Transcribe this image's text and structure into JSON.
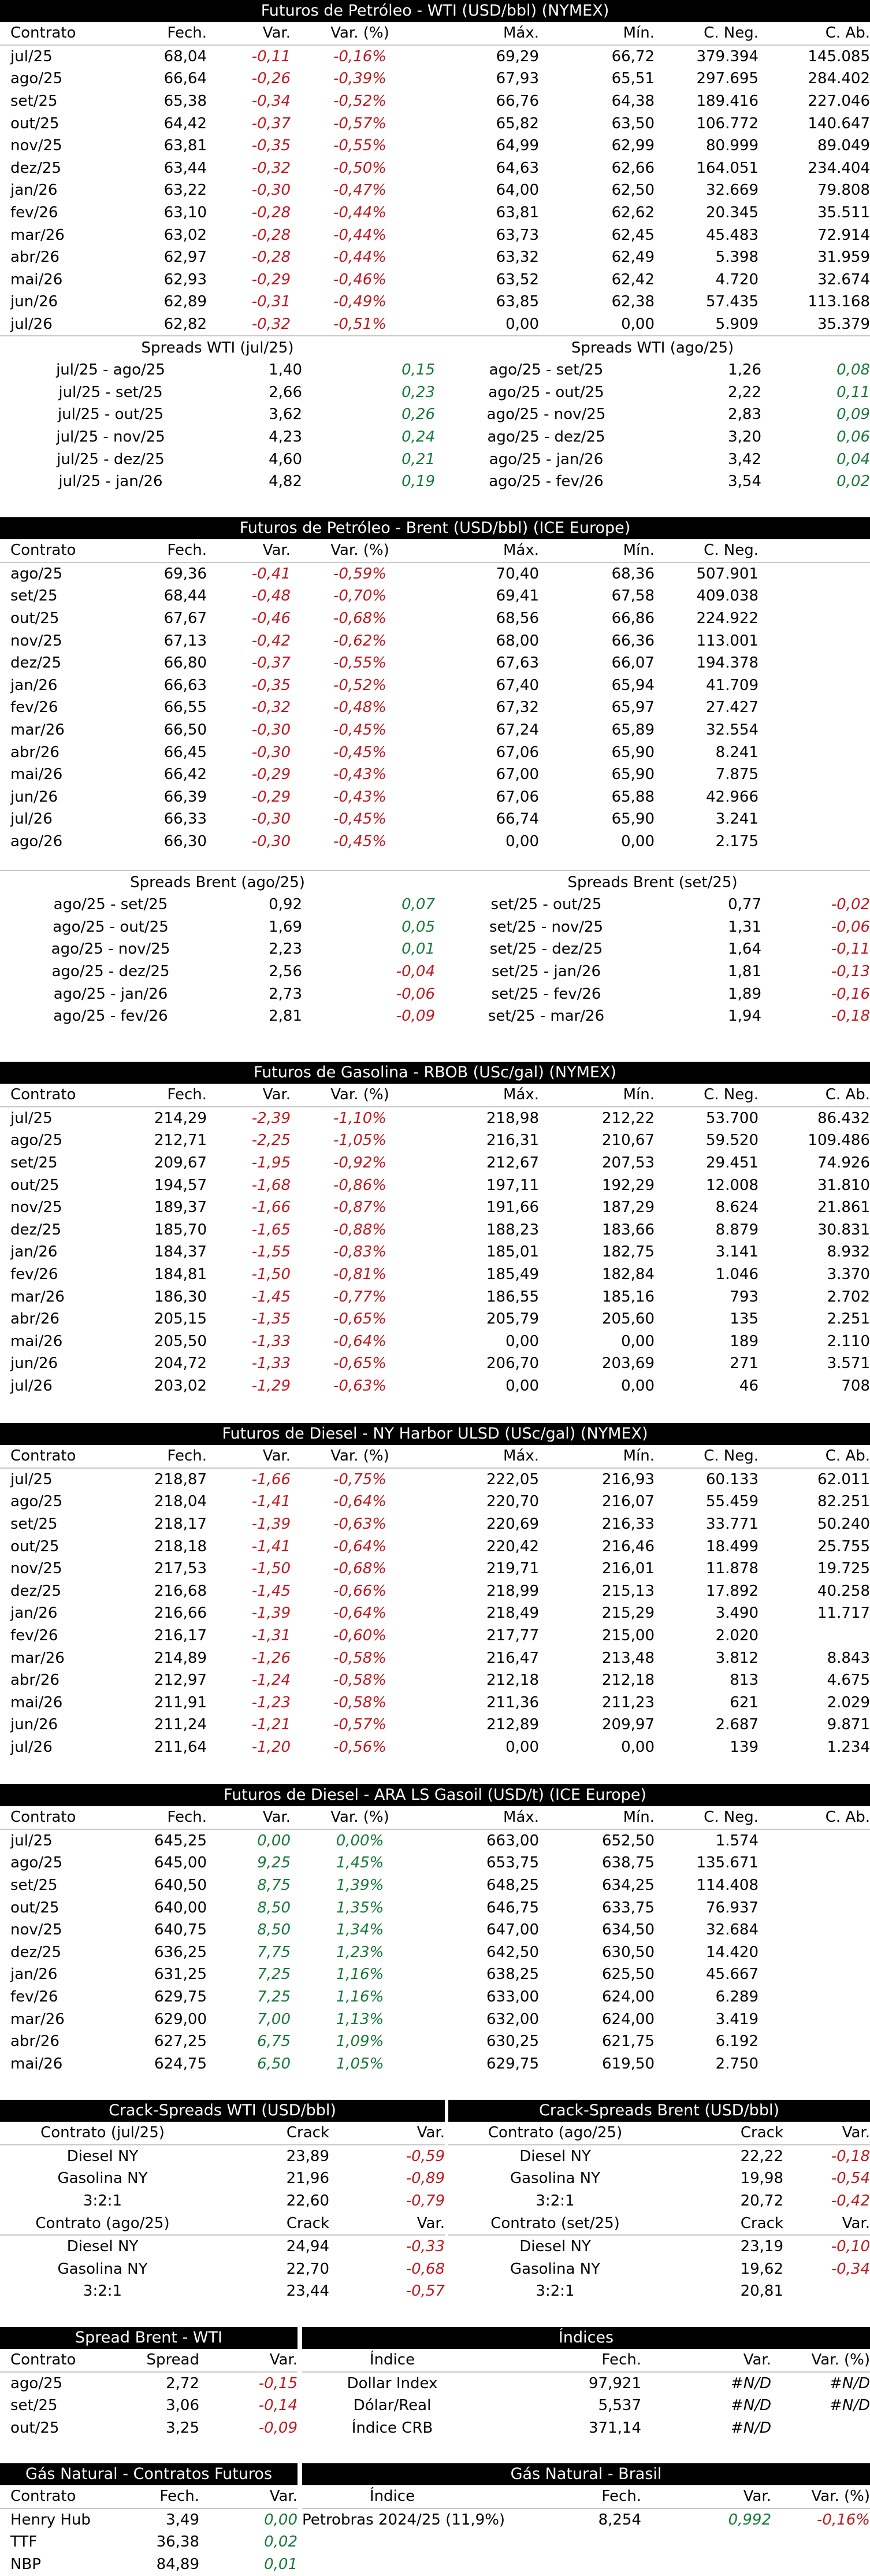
{
  "colors": {
    "header_bg": "#000000",
    "header_text": "#ffffff",
    "negative": "#c0181f",
    "positive": "#177a3a"
  },
  "wti": {
    "title": "Futuros de Petróleo - WTI (USD/bbl) (NYMEX)",
    "columns": [
      "Contrato",
      "Fech.",
      "Var.",
      "Var. (%)",
      "Máx.",
      "Mín.",
      "C. Neg.",
      "C. Ab."
    ],
    "rows": [
      [
        "jul/25",
        "68,04",
        "-0,11",
        "-0,16%",
        "69,29",
        "66,72",
        "379.394",
        "145.085"
      ],
      [
        "ago/25",
        "66,64",
        "-0,26",
        "-0,39%",
        "67,93",
        "65,51",
        "297.695",
        "284.402"
      ],
      [
        "set/25",
        "65,38",
        "-0,34",
        "-0,52%",
        "66,76",
        "64,38",
        "189.416",
        "227.046"
      ],
      [
        "out/25",
        "64,42",
        "-0,37",
        "-0,57%",
        "65,82",
        "63,50",
        "106.772",
        "140.647"
      ],
      [
        "nov/25",
        "63,81",
        "-0,35",
        "-0,55%",
        "64,99",
        "62,99",
        "80.999",
        "89.049"
      ],
      [
        "dez/25",
        "63,44",
        "-0,32",
        "-0,50%",
        "64,63",
        "62,66",
        "164.051",
        "234.404"
      ],
      [
        "jan/26",
        "63,22",
        "-0,30",
        "-0,47%",
        "64,00",
        "62,50",
        "32.669",
        "79.808"
      ],
      [
        "fev/26",
        "63,10",
        "-0,28",
        "-0,44%",
        "63,81",
        "62,62",
        "20.345",
        "35.511"
      ],
      [
        "mar/26",
        "63,02",
        "-0,28",
        "-0,44%",
        "63,73",
        "62,45",
        "45.483",
        "72.914"
      ],
      [
        "abr/26",
        "62,97",
        "-0,28",
        "-0,44%",
        "63,32",
        "62,49",
        "5.398",
        "31.959"
      ],
      [
        "mai/26",
        "62,93",
        "-0,29",
        "-0,46%",
        "63,52",
        "62,42",
        "4.720",
        "32.674"
      ],
      [
        "jun/26",
        "62,89",
        "-0,31",
        "-0,49%",
        "63,85",
        "62,38",
        "57.435",
        "113.168"
      ],
      [
        "jul/26",
        "62,82",
        "-0,32",
        "-0,51%",
        "0,00",
        "0,00",
        "5.909",
        "35.379"
      ]
    ],
    "spreads_left_title": "Spreads WTI (jul/25)",
    "spreads_right_title": "Spreads WTI (ago/25)",
    "spreads": [
      [
        "jul/25 - ago/25",
        "1,40",
        "0,15",
        "ago/25 - set/25",
        "1,26",
        "0,08"
      ],
      [
        "jul/25 - set/25",
        "2,66",
        "0,23",
        "ago/25 - out/25",
        "2,22",
        "0,11"
      ],
      [
        "jul/25 - out/25",
        "3,62",
        "0,26",
        "ago/25 - nov/25",
        "2,83",
        "0,09"
      ],
      [
        "jul/25 - nov/25",
        "4,23",
        "0,24",
        "ago/25 - dez/25",
        "3,20",
        "0,06"
      ],
      [
        "jul/25 - dez/25",
        "4,60",
        "0,21",
        "ago/25 - jan/26",
        "3,42",
        "0,04"
      ],
      [
        "jul/25 - jan/26",
        "4,82",
        "0,19",
        "ago/25 - fev/26",
        "3,54",
        "0,02"
      ]
    ]
  },
  "brent": {
    "title": "Futuros de Petróleo - Brent (USD/bbl) (ICE Europe)",
    "columns": [
      "Contrato",
      "Fech.",
      "Var.",
      "Var. (%)",
      "Máx.",
      "Mín.",
      "C. Neg.",
      ""
    ],
    "rows": [
      [
        "ago/25",
        "69,36",
        "-0,41",
        "-0,59%",
        "70,40",
        "68,36",
        "507.901",
        ""
      ],
      [
        "set/25",
        "68,44",
        "-0,48",
        "-0,70%",
        "69,41",
        "67,58",
        "409.038",
        ""
      ],
      [
        "out/25",
        "67,67",
        "-0,46",
        "-0,68%",
        "68,56",
        "66,86",
        "224.922",
        ""
      ],
      [
        "nov/25",
        "67,13",
        "-0,42",
        "-0,62%",
        "68,00",
        "66,36",
        "113.001",
        ""
      ],
      [
        "dez/25",
        "66,80",
        "-0,37",
        "-0,55%",
        "67,63",
        "66,07",
        "194.378",
        ""
      ],
      [
        "jan/26",
        "66,63",
        "-0,35",
        "-0,52%",
        "67,40",
        "65,94",
        "41.709",
        ""
      ],
      [
        "fev/26",
        "66,55",
        "-0,32",
        "-0,48%",
        "67,32",
        "65,97",
        "27.427",
        ""
      ],
      [
        "mar/26",
        "66,50",
        "-0,30",
        "-0,45%",
        "67,24",
        "65,89",
        "32.554",
        ""
      ],
      [
        "abr/26",
        "66,45",
        "-0,30",
        "-0,45%",
        "67,06",
        "65,90",
        "8.241",
        ""
      ],
      [
        "mai/26",
        "66,42",
        "-0,29",
        "-0,43%",
        "67,00",
        "65,90",
        "7.875",
        ""
      ],
      [
        "jun/26",
        "66,39",
        "-0,29",
        "-0,43%",
        "67,06",
        "65,88",
        "42.966",
        ""
      ],
      [
        "jul/26",
        "66,33",
        "-0,30",
        "-0,45%",
        "66,74",
        "65,90",
        "3.241",
        ""
      ],
      [
        "ago/26",
        "66,30",
        "-0,30",
        "-0,45%",
        "0,00",
        "0,00",
        "2.175",
        ""
      ]
    ],
    "spreads_left_title": "Spreads Brent (ago/25)",
    "spreads_right_title": "Spreads Brent (set/25)",
    "spreads": [
      [
        "ago/25 - set/25",
        "0,92",
        "0,07",
        "set/25 - out/25",
        "0,77",
        "-0,02"
      ],
      [
        "ago/25 - out/25",
        "1,69",
        "0,05",
        "set/25 - nov/25",
        "1,31",
        "-0,06"
      ],
      [
        "ago/25 - nov/25",
        "2,23",
        "0,01",
        "set/25 - dez/25",
        "1,64",
        "-0,11"
      ],
      [
        "ago/25 - dez/25",
        "2,56",
        "-0,04",
        "set/25 - jan/26",
        "1,81",
        "-0,13"
      ],
      [
        "ago/25 - jan/26",
        "2,73",
        "-0,06",
        "set/25 - fev/26",
        "1,89",
        "-0,16"
      ],
      [
        "ago/25 - fev/26",
        "2,81",
        "-0,09",
        "set/25 - mar/26",
        "1,94",
        "-0,18"
      ]
    ]
  },
  "rbob": {
    "title": "Futuros de Gasolina - RBOB (USc/gal) (NYMEX)",
    "columns": [
      "Contrato",
      "Fech.",
      "Var.",
      "Var. (%)",
      "Máx.",
      "Mín.",
      "C. Neg.",
      "C. Ab."
    ],
    "rows": [
      [
        "jul/25",
        "214,29",
        "-2,39",
        "-1,10%",
        "218,98",
        "212,22",
        "53.700",
        "86.432"
      ],
      [
        "ago/25",
        "212,71",
        "-2,25",
        "-1,05%",
        "216,31",
        "210,67",
        "59.520",
        "109.486"
      ],
      [
        "set/25",
        "209,67",
        "-1,95",
        "-0,92%",
        "212,67",
        "207,53",
        "29.451",
        "74.926"
      ],
      [
        "out/25",
        "194,57",
        "-1,68",
        "-0,86%",
        "197,11",
        "192,29",
        "12.008",
        "31.810"
      ],
      [
        "nov/25",
        "189,37",
        "-1,66",
        "-0,87%",
        "191,66",
        "187,29",
        "8.624",
        "21.861"
      ],
      [
        "dez/25",
        "185,70",
        "-1,65",
        "-0,88%",
        "188,23",
        "183,66",
        "8.879",
        "30.831"
      ],
      [
        "jan/26",
        "184,37",
        "-1,55",
        "-0,83%",
        "185,01",
        "182,75",
        "3.141",
        "8.932"
      ],
      [
        "fev/26",
        "184,81",
        "-1,50",
        "-0,81%",
        "185,49",
        "182,84",
        "1.046",
        "3.370"
      ],
      [
        "mar/26",
        "186,30",
        "-1,45",
        "-0,77%",
        "186,55",
        "185,16",
        "793",
        "2.702"
      ],
      [
        "abr/26",
        "205,15",
        "-1,35",
        "-0,65%",
        "205,79",
        "205,60",
        "135",
        "2.251"
      ],
      [
        "mai/26",
        "205,50",
        "-1,33",
        "-0,64%",
        "0,00",
        "0,00",
        "189",
        "2.110"
      ],
      [
        "jun/26",
        "204,72",
        "-1,33",
        "-0,65%",
        "206,70",
        "203,69",
        "271",
        "3.571"
      ],
      [
        "jul/26",
        "203,02",
        "-1,29",
        "-0,63%",
        "0,00",
        "0,00",
        "46",
        "708"
      ]
    ]
  },
  "diesel_ny": {
    "title": "Futuros de Diesel - NY Harbor ULSD (USc/gal) (NYMEX)",
    "columns": [
      "Contrato",
      "Fech.",
      "Var.",
      "Var. (%)",
      "Máx.",
      "Mín.",
      "C. Neg.",
      "C. Ab."
    ],
    "rows": [
      [
        "jul/25",
        "218,87",
        "-1,66",
        "-0,75%",
        "222,05",
        "216,93",
        "60.133",
        "62.011"
      ],
      [
        "ago/25",
        "218,04",
        "-1,41",
        "-0,64%",
        "220,70",
        "216,07",
        "55.459",
        "82.251"
      ],
      [
        "set/25",
        "218,17",
        "-1,39",
        "-0,63%",
        "220,69",
        "216,33",
        "33.771",
        "50.240"
      ],
      [
        "out/25",
        "218,18",
        "-1,41",
        "-0,64%",
        "220,42",
        "216,46",
        "18.499",
        "25.755"
      ],
      [
        "nov/25",
        "217,53",
        "-1,50",
        "-0,68%",
        "219,71",
        "216,01",
        "11.878",
        "19.725"
      ],
      [
        "dez/25",
        "216,68",
        "-1,45",
        "-0,66%",
        "218,99",
        "215,13",
        "17.892",
        "40.258"
      ],
      [
        "jan/26",
        "216,66",
        "-1,39",
        "-0,64%",
        "218,49",
        "215,29",
        "3.490",
        "11.717"
      ],
      [
        "fev/26",
        "216,17",
        "-1,31",
        "-0,60%",
        "217,77",
        "215,00",
        "2.020",
        ""
      ],
      [
        "mar/26",
        "214,89",
        "-1,26",
        "-0,58%",
        "216,47",
        "213,48",
        "3.812",
        "8.843"
      ],
      [
        "abr/26",
        "212,97",
        "-1,24",
        "-0,58%",
        "212,18",
        "212,18",
        "813",
        "4.675"
      ],
      [
        "mai/26",
        "211,91",
        "-1,23",
        "-0,58%",
        "211,36",
        "211,23",
        "621",
        "2.029"
      ],
      [
        "jun/26",
        "211,24",
        "-1,21",
        "-0,57%",
        "212,89",
        "209,97",
        "2.687",
        "9.871"
      ],
      [
        "jul/26",
        "211,64",
        "-1,20",
        "-0,56%",
        "0,00",
        "0,00",
        "139",
        "1.234"
      ]
    ]
  },
  "gasoil": {
    "title": "Futuros de Diesel - ARA LS Gasoil (USD/t) (ICE Europe)",
    "columns": [
      "Contrato",
      "Fech.",
      "Var.",
      "Var. (%)",
      "Máx.",
      "Mín.",
      "C. Neg.",
      "C. Ab."
    ],
    "rows": [
      [
        "jul/25",
        "645,25",
        "0,00",
        "0,00%",
        "663,00",
        "652,50",
        "1.574",
        ""
      ],
      [
        "ago/25",
        "645,00",
        "9,25",
        "1,45%",
        "653,75",
        "638,75",
        "135.671",
        ""
      ],
      [
        "set/25",
        "640,50",
        "8,75",
        "1,39%",
        "648,25",
        "634,25",
        "114.408",
        ""
      ],
      [
        "out/25",
        "640,00",
        "8,50",
        "1,35%",
        "646,75",
        "633,75",
        "76.937",
        ""
      ],
      [
        "nov/25",
        "640,75",
        "8,50",
        "1,34%",
        "647,00",
        "634,50",
        "32.684",
        ""
      ],
      [
        "dez/25",
        "636,25",
        "7,75",
        "1,23%",
        "642,50",
        "630,50",
        "14.420",
        ""
      ],
      [
        "jan/26",
        "631,25",
        "7,25",
        "1,16%",
        "638,25",
        "625,50",
        "45.667",
        ""
      ],
      [
        "fev/26",
        "629,75",
        "7,25",
        "1,16%",
        "633,00",
        "624,00",
        "6.289",
        ""
      ],
      [
        "mar/26",
        "629,00",
        "7,00",
        "1,13%",
        "632,00",
        "624,00",
        "3.419",
        ""
      ],
      [
        "abr/26",
        "627,25",
        "6,75",
        "1,09%",
        "630,25",
        "621,75",
        "6.192",
        ""
      ],
      [
        "mai/26",
        "624,75",
        "6,50",
        "1,05%",
        "629,75",
        "619,50",
        "2.750",
        ""
      ]
    ]
  },
  "crack": {
    "wti_title": "Crack-Spreads WTI (USD/bbl)",
    "brent_title": "Crack-Spreads Brent (USD/bbl)",
    "crack_label": "Crack",
    "var_label": "Var.",
    "wti_groups": [
      {
        "contract": "Contrato (jul/25)",
        "rows": [
          [
            "Diesel NY",
            "23,89",
            "-0,59"
          ],
          [
            "Gasolina NY",
            "21,96",
            "-0,89"
          ],
          [
            "3:2:1",
            "22,60",
            "-0,79"
          ]
        ]
      },
      {
        "contract": "Contrato (ago/25)",
        "rows": [
          [
            "Diesel NY",
            "24,94",
            "-0,33"
          ],
          [
            "Gasolina NY",
            "22,70",
            "-0,68"
          ],
          [
            "3:2:1",
            "23,44",
            "-0,57"
          ]
        ]
      }
    ],
    "brent_groups": [
      {
        "contract": "Contrato (ago/25)",
        "rows": [
          [
            "Diesel NY",
            "22,22",
            "-0,18"
          ],
          [
            "Gasolina NY",
            "19,98",
            "-0,54"
          ],
          [
            "3:2:1",
            "20,72",
            "-0,42"
          ]
        ]
      },
      {
        "contract": "Contrato (set/25)",
        "rows": [
          [
            "Diesel NY",
            "23,19",
            "-0,10"
          ],
          [
            "Gasolina NY",
            "19,62",
            "-0,34"
          ],
          [
            "3:2:1",
            "20,81",
            ""
          ]
        ]
      }
    ]
  },
  "spread_bw": {
    "title": "Spread Brent - WTI",
    "columns": [
      "Contrato",
      "Spread",
      "Var."
    ],
    "rows": [
      [
        "ago/25",
        "2,72",
        "-0,15"
      ],
      [
        "set/25",
        "3,06",
        "-0,14"
      ],
      [
        "out/25",
        "3,25",
        "-0,09"
      ]
    ]
  },
  "indices": {
    "title": "Índices",
    "columns": [
      "Índice",
      "Fech.",
      "Var.",
      "Var. (%)"
    ],
    "rows": [
      [
        "Dollar Index",
        "97,921",
        "#N/D",
        "#N/D"
      ],
      [
        "Dólar/Real",
        "5,537",
        "#N/D",
        "#N/D"
      ],
      [
        "Índice CRB",
        "371,14",
        "#N/D",
        ""
      ]
    ]
  },
  "gas_futures": {
    "title": "Gás Natural - Contratos Futuros",
    "columns": [
      "Contrato",
      "Fech.",
      "Var."
    ],
    "rows": [
      [
        "Henry Hub",
        "3,49",
        "0,00"
      ],
      [
        "TTF",
        "36,38",
        "0,02"
      ],
      [
        "NBP",
        "84,89",
        "0,01"
      ]
    ]
  },
  "gas_brasil": {
    "title": "Gás Natural - Brasil",
    "columns": [
      "Índice",
      "Fech.",
      "Var.",
      "Var. (%)"
    ],
    "rows": [
      [
        "Petrobras 2024/25 (11,9%)",
        "8,254",
        "0,992",
        "-0,16%"
      ]
    ]
  }
}
